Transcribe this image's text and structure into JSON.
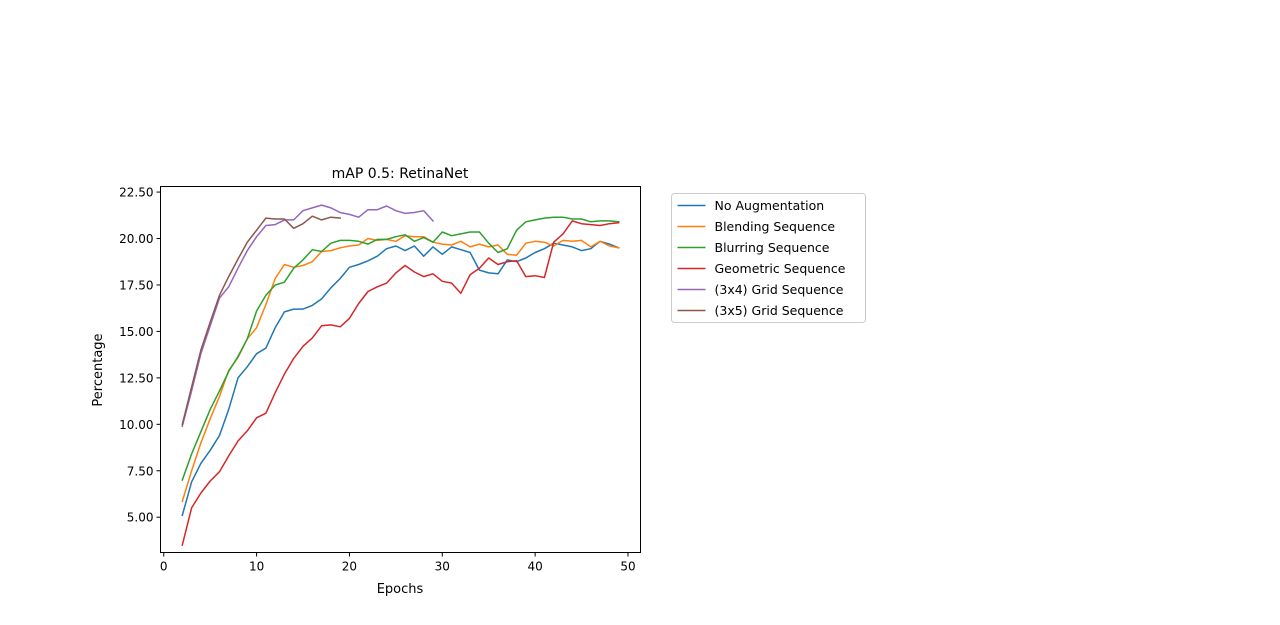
{
  "chart_data": {
    "type": "line",
    "title": "mAP 0.5: RetinaNet",
    "xlabel": "Epochs",
    "ylabel": "Percentage",
    "xlim": [
      -0.35,
      51.35
    ],
    "ylim": [
      3.1,
      22.8
    ],
    "xticks": [
      0,
      10,
      20,
      30,
      40,
      50
    ],
    "xtick_labels": [
      "0",
      "10",
      "20",
      "30",
      "40",
      "50"
    ],
    "yticks": [
      5.0,
      7.5,
      10.0,
      12.5,
      15.0,
      17.5,
      20.0,
      22.5
    ],
    "ytick_labels": [
      "5.00",
      "7.50",
      "10.00",
      "12.50",
      "15.00",
      "17.50",
      "20.00",
      "22.50"
    ],
    "grid": false,
    "legend_position": "outside right",
    "series": [
      {
        "name": "No Augmentation",
        "color": "#1f77b4",
        "x": [
          2,
          3,
          4,
          5,
          6,
          7,
          8,
          9,
          10,
          11,
          12,
          13,
          14,
          15,
          16,
          17,
          18,
          19,
          20,
          21,
          22,
          23,
          24,
          25,
          26,
          27,
          28,
          29,
          30,
          31,
          32,
          33,
          34,
          35,
          36,
          37,
          38,
          39,
          40,
          41,
          42,
          43,
          44,
          45,
          46,
          47,
          48,
          49
        ],
        "values": [
          5.1,
          6.9,
          7.9,
          8.6,
          9.4,
          10.8,
          12.5,
          13.1,
          13.8,
          14.1,
          15.2,
          16.05,
          16.2,
          16.2,
          16.4,
          16.75,
          17.35,
          17.85,
          18.45,
          18.6,
          18.8,
          19.05,
          19.45,
          19.6,
          19.35,
          19.6,
          19.05,
          19.55,
          19.15,
          19.55,
          19.4,
          19.25,
          18.3,
          18.15,
          18.1,
          18.85,
          18.75,
          18.95,
          19.25,
          19.45,
          19.75,
          19.65,
          19.55,
          19.35,
          19.45,
          19.85,
          19.7,
          19.5
        ]
      },
      {
        "name": "Blending Sequence",
        "color": "#ff7f0e",
        "x": [
          2,
          3,
          4,
          5,
          6,
          7,
          8,
          9,
          10,
          11,
          12,
          13,
          14,
          15,
          16,
          17,
          18,
          19,
          20,
          21,
          22,
          23,
          24,
          25,
          26,
          27,
          28,
          29,
          30,
          31,
          32,
          33,
          34,
          35,
          36,
          37,
          38,
          39,
          40,
          41,
          42,
          43,
          44,
          45,
          46,
          47,
          48,
          49
        ],
        "values": [
          5.85,
          7.5,
          9.0,
          10.3,
          11.5,
          12.9,
          13.6,
          14.6,
          15.2,
          16.45,
          17.85,
          18.6,
          18.45,
          18.55,
          18.75,
          19.3,
          19.35,
          19.5,
          19.6,
          19.65,
          20.0,
          19.9,
          19.95,
          19.85,
          20.15,
          20.1,
          20.1,
          19.8,
          19.7,
          19.65,
          19.85,
          19.55,
          19.7,
          19.55,
          19.65,
          19.15,
          19.1,
          19.75,
          19.85,
          19.8,
          19.6,
          19.9,
          19.85,
          19.9,
          19.55,
          19.85,
          19.6,
          19.5
        ]
      },
      {
        "name": "Blurring Sequence",
        "color": "#2ca02c",
        "x": [
          2,
          3,
          4,
          5,
          6,
          7,
          8,
          9,
          10,
          11,
          12,
          13,
          14,
          15,
          16,
          17,
          18,
          19,
          20,
          21,
          22,
          23,
          24,
          25,
          26,
          27,
          28,
          29,
          30,
          31,
          32,
          33,
          34,
          35,
          36,
          37,
          38,
          39,
          40,
          41,
          42,
          43,
          44,
          45,
          46,
          47,
          48,
          49
        ],
        "values": [
          7.0,
          8.4,
          9.6,
          10.8,
          11.8,
          12.85,
          13.65,
          14.6,
          16.1,
          16.95,
          17.5,
          17.65,
          18.4,
          18.85,
          19.4,
          19.3,
          19.75,
          19.9,
          19.9,
          19.85,
          19.7,
          19.95,
          19.95,
          20.1,
          20.2,
          19.85,
          20.05,
          19.8,
          20.35,
          20.15,
          20.25,
          20.35,
          20.35,
          19.75,
          19.25,
          19.45,
          20.45,
          20.9,
          21.0,
          21.1,
          21.15,
          21.15,
          21.05,
          21.05,
          20.9,
          20.95,
          20.95,
          20.9
        ]
      },
      {
        "name": "Geometric Sequence",
        "color": "#d62728",
        "x": [
          2,
          3,
          4,
          5,
          6,
          7,
          8,
          9,
          10,
          11,
          12,
          13,
          14,
          15,
          16,
          17,
          18,
          19,
          20,
          21,
          22,
          23,
          24,
          25,
          26,
          27,
          28,
          29,
          30,
          31,
          32,
          33,
          34,
          35,
          36,
          37,
          38,
          39,
          40,
          41,
          42,
          43,
          44,
          45,
          46,
          47,
          48,
          49
        ],
        "values": [
          3.5,
          5.5,
          6.3,
          6.95,
          7.45,
          8.3,
          9.1,
          9.65,
          10.35,
          10.6,
          11.7,
          12.7,
          13.55,
          14.2,
          14.65,
          15.3,
          15.35,
          15.25,
          15.7,
          16.5,
          17.15,
          17.4,
          17.6,
          18.15,
          18.55,
          18.2,
          17.95,
          18.1,
          17.7,
          17.6,
          17.05,
          18.05,
          18.4,
          18.95,
          18.6,
          18.75,
          18.8,
          17.95,
          18.0,
          17.9,
          19.8,
          20.25,
          20.95,
          20.8,
          20.75,
          20.7,
          20.8,
          20.85
        ]
      },
      {
        "name": "(3x4) Grid Sequence",
        "color": "#9467bd",
        "x": [
          2,
          3,
          4,
          5,
          6,
          7,
          8,
          9,
          10,
          11,
          12,
          13,
          14,
          15,
          16,
          17,
          18,
          19,
          20,
          21,
          22,
          23,
          24,
          25,
          26,
          27,
          28,
          29
        ],
        "values": [
          9.9,
          11.8,
          13.8,
          15.3,
          16.8,
          17.4,
          18.4,
          19.35,
          20.1,
          20.7,
          20.75,
          21.0,
          21.0,
          21.5,
          21.65,
          21.8,
          21.65,
          21.4,
          21.3,
          21.15,
          21.55,
          21.55,
          21.75,
          21.5,
          21.35,
          21.4,
          21.5,
          20.95
        ]
      },
      {
        "name": "(3x5) Grid Sequence",
        "color": "#8c564b",
        "x": [
          2,
          3,
          4,
          5,
          6,
          7,
          8,
          9,
          10,
          11,
          12,
          13,
          14,
          15,
          16,
          17,
          18,
          19
        ],
        "values": [
          10.0,
          12.0,
          14.0,
          15.5,
          16.95,
          17.95,
          18.9,
          19.8,
          20.45,
          21.1,
          21.05,
          21.05,
          20.55,
          20.8,
          21.2,
          21.0,
          21.15,
          21.1
        ]
      }
    ]
  }
}
